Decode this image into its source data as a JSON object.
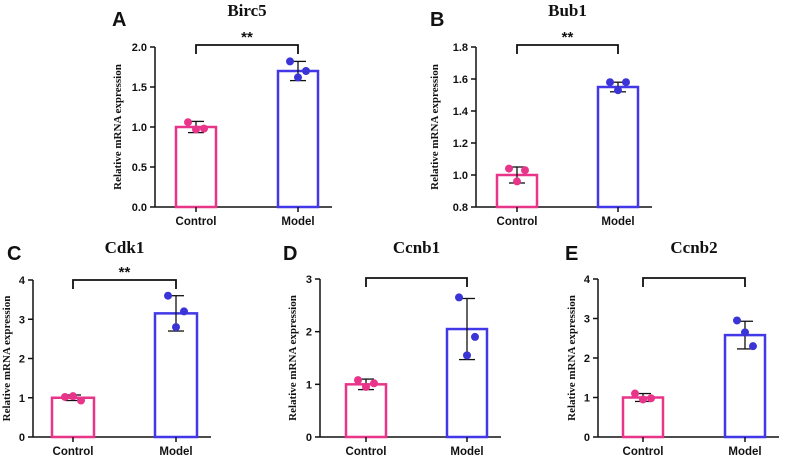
{
  "colors": {
    "control": "#E8358A",
    "model": "#4338E8",
    "control_dot": "#E8358A",
    "model_dot": "#3B34D6",
    "axis": "#111111"
  },
  "chart_data": [
    {
      "panel": "A",
      "type": "bar",
      "title": "Birc5",
      "ylabel": "Relative mRNA expression",
      "ylim": [
        0.0,
        2.0
      ],
      "yticks": [
        0.0,
        0.5,
        1.0,
        1.5,
        2.0
      ],
      "tick_labels": [
        "0.0",
        "0.5",
        "1.0",
        "1.5",
        "2.0"
      ],
      "categories": [
        "Control",
        "Model"
      ],
      "values": [
        1.0,
        1.7
      ],
      "errors": [
        0.07,
        0.12
      ],
      "points": [
        [
          1.06,
          0.97,
          0.98
        ],
        [
          1.82,
          1.62,
          1.7
        ]
      ],
      "significance": "**"
    },
    {
      "panel": "B",
      "type": "bar",
      "title": "Bub1",
      "ylabel": "Relative mRNA expression",
      "ylim": [
        0.8,
        1.8
      ],
      "yticks": [
        0.8,
        1.0,
        1.2,
        1.4,
        1.6,
        1.8
      ],
      "tick_labels": [
        "0.8",
        "1.0",
        "1.2",
        "1.4",
        "1.6",
        "1.8"
      ],
      "categories": [
        "Control",
        "Model"
      ],
      "values": [
        1.0,
        1.55
      ],
      "errors": [
        0.05,
        0.03
      ],
      "points": [
        [
          1.04,
          0.96,
          1.03
        ],
        [
          1.58,
          1.53,
          1.58
        ]
      ],
      "significance": "**"
    },
    {
      "panel": "C",
      "type": "bar",
      "title": "Cdk1",
      "ylabel": "Relative mRNA expression",
      "ylim": [
        0,
        4
      ],
      "yticks": [
        0,
        1,
        2,
        3,
        4
      ],
      "tick_labels": [
        "0",
        "1",
        "2",
        "3",
        "4"
      ],
      "categories": [
        "Control",
        "Model"
      ],
      "values": [
        1.0,
        3.15
      ],
      "errors": [
        0.07,
        0.45
      ],
      "points": [
        [
          1.02,
          1.04,
          0.93
        ],
        [
          3.6,
          2.8,
          3.2
        ]
      ],
      "significance": "**"
    },
    {
      "panel": "D",
      "type": "bar",
      "title": "Ccnb1",
      "ylabel": "Relative mRNA expression",
      "ylim": [
        0,
        3
      ],
      "yticks": [
        0,
        1,
        2,
        3
      ],
      "tick_labels": [
        "0",
        "1",
        "2",
        "3"
      ],
      "categories": [
        "Control",
        "Model"
      ],
      "values": [
        1.0,
        2.05
      ],
      "errors": [
        0.1,
        0.58
      ],
      "points": [
        [
          1.08,
          0.95,
          1.02
        ],
        [
          2.65,
          1.55,
          1.9
        ]
      ],
      "significance": ""
    },
    {
      "panel": "E",
      "type": "bar",
      "title": "Ccnb2",
      "ylabel": "Relative mRNA expression",
      "ylim": [
        0,
        4
      ],
      "yticks": [
        0,
        1,
        2,
        3,
        4
      ],
      "tick_labels": [
        "0",
        "1",
        "2",
        "3",
        "4"
      ],
      "categories": [
        "Control",
        "Model"
      ],
      "values": [
        1.0,
        2.58
      ],
      "errors": [
        0.1,
        0.35
      ],
      "points": [
        [
          1.1,
          0.95,
          0.98
        ],
        [
          2.95,
          2.65,
          2.3
        ]
      ],
      "significance": ""
    }
  ]
}
